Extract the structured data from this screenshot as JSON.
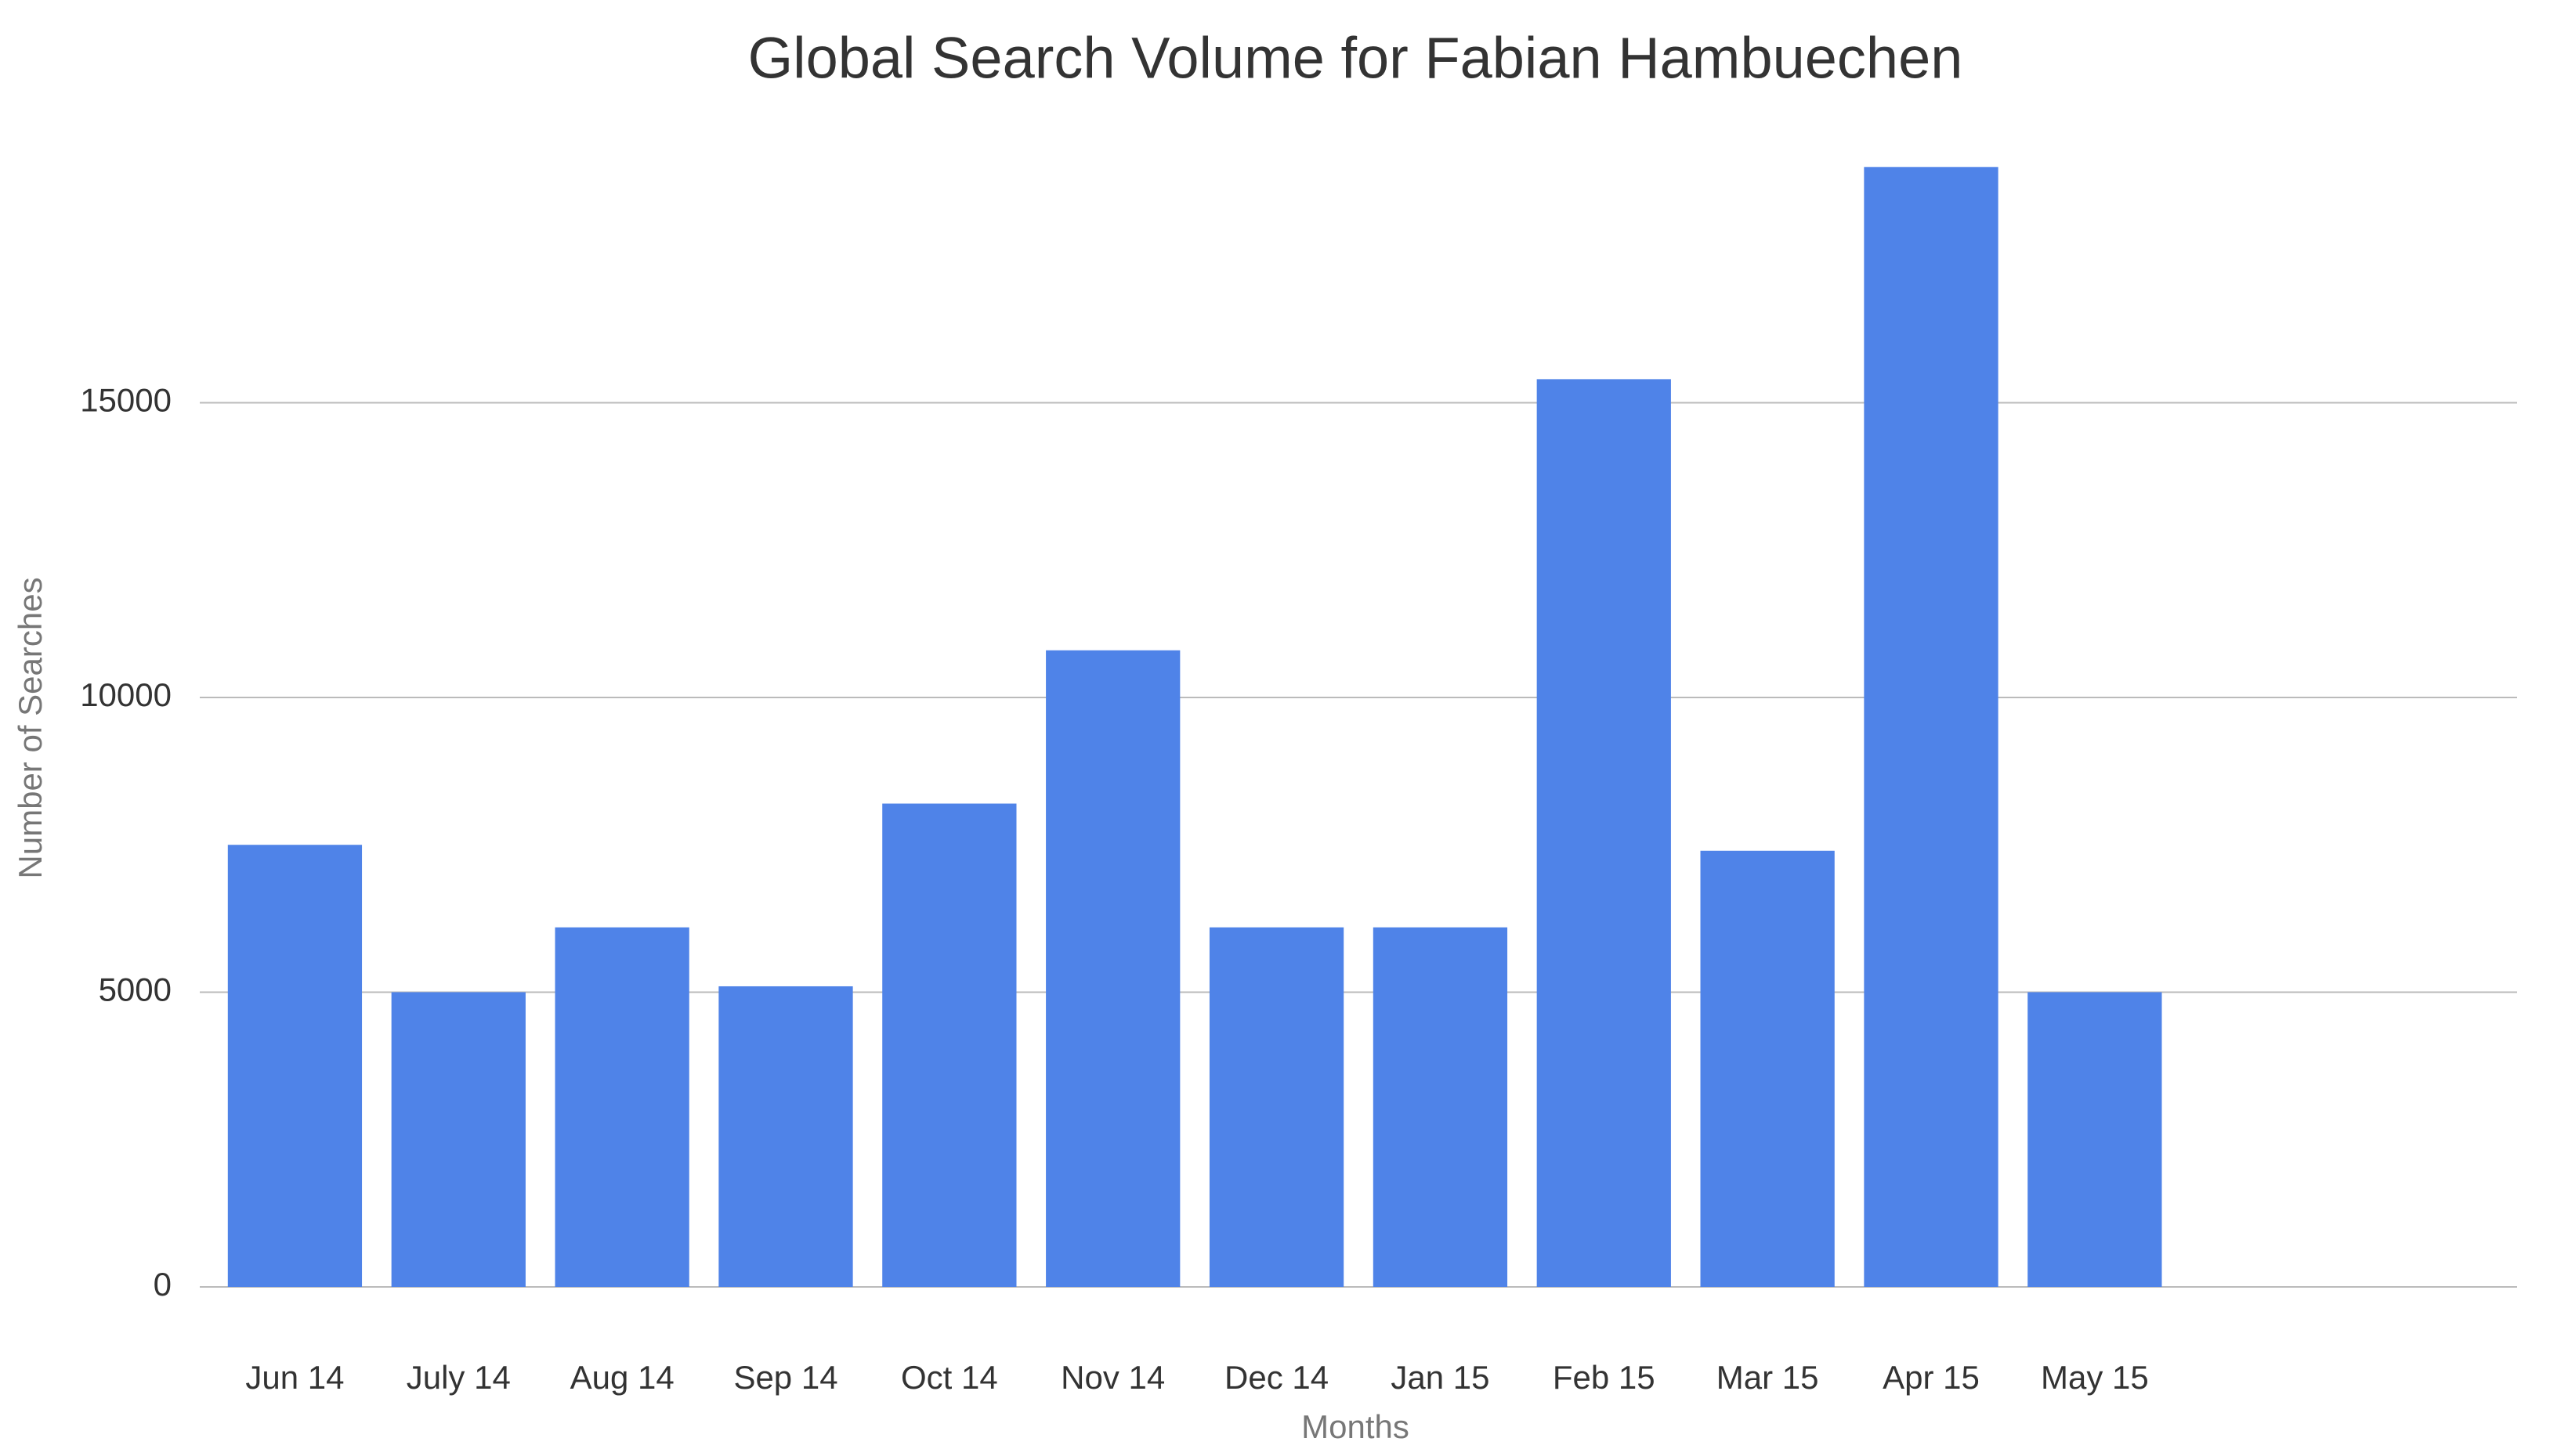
{
  "chart_data": {
    "type": "bar",
    "title": "Global Search Volume for Fabian Hambuechen",
    "x_label": "Months",
    "y_label": "Number of Searches",
    "categories": [
      "Jun 14",
      "July 14",
      "Aug 14",
      "Sep 14",
      "Oct 14",
      "Nov 14",
      "Dec 14",
      "Jan 15",
      "Feb 15",
      "Mar 15",
      "Apr 15",
      "May 15",
      null,
      null
    ],
    "values": [
      7500,
      5000,
      6100,
      5100,
      8200,
      10800,
      6100,
      6100,
      15400,
      7400,
      19000,
      5000,
      null,
      null
    ],
    "color": "#4f83e8",
    "ylim": [
      0,
      20000
    ],
    "yticks": [
      0,
      5000,
      10000,
      15000
    ],
    "grid": true
  }
}
